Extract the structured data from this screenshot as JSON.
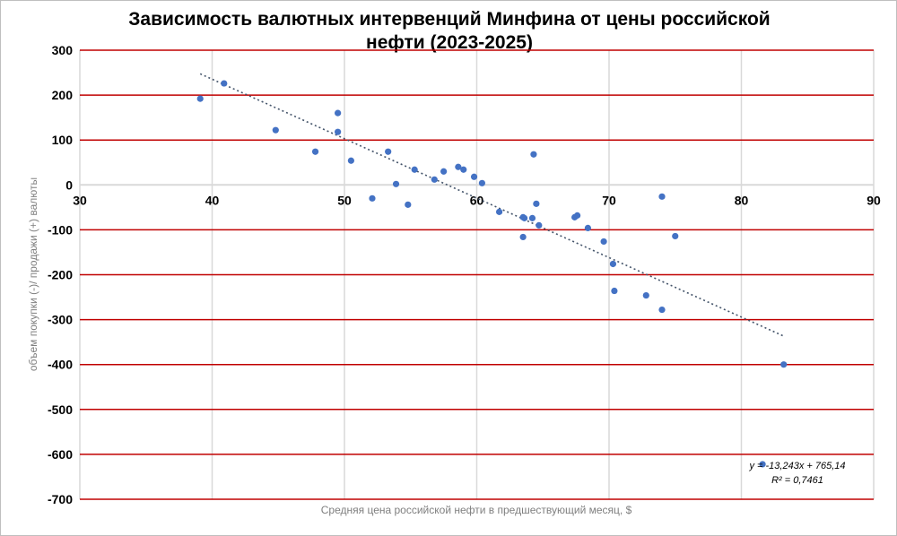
{
  "chart_data": {
    "type": "scatter",
    "title_line1": "Зависимость валютных интервенций Минфина от цены российской",
    "title_line2": "нефти (2023-2025)",
    "xlabel": "Средняя цена российской нефти в предшествующий месяц, $",
    "ylabel": "объем покупки (-)/ продажи (+) валюты",
    "xlim": [
      30,
      90
    ],
    "ylim": [
      -700,
      300
    ],
    "x_ticks": [
      "30",
      "40",
      "50",
      "60",
      "70",
      "80",
      "90"
    ],
    "y_ticks": [
      "300",
      "200",
      "100",
      "0",
      "-100",
      "-200",
      "-300",
      "-400",
      "-500",
      "-600",
      "-700"
    ],
    "grid": true,
    "colors": {
      "points": "#4472c4",
      "hgrid": "#c00000",
      "vgrid": "#d9d9d9",
      "trend": "#44546a"
    },
    "points": [
      [
        39.1,
        192
      ],
      [
        40.9,
        226
      ],
      [
        44.8,
        122
      ],
      [
        47.8,
        74
      ],
      [
        49.5,
        160
      ],
      [
        49.5,
        118
      ],
      [
        50.5,
        54
      ],
      [
        52.1,
        -30
      ],
      [
        53.3,
        74
      ],
      [
        53.9,
        2
      ],
      [
        54.8,
        -44
      ],
      [
        55.3,
        34
      ],
      [
        56.8,
        12
      ],
      [
        57.5,
        30
      ],
      [
        58.6,
        40
      ],
      [
        59.0,
        34
      ],
      [
        59.8,
        18
      ],
      [
        60.4,
        4
      ],
      [
        61.7,
        -60
      ],
      [
        63.5,
        -72
      ],
      [
        63.6,
        -74
      ],
      [
        63.5,
        -116
      ],
      [
        64.2,
        -74
      ],
      [
        64.3,
        68
      ],
      [
        64.5,
        -42
      ],
      [
        64.7,
        -90
      ],
      [
        67.4,
        -72
      ],
      [
        67.6,
        -68
      ],
      [
        68.4,
        -96
      ],
      [
        69.6,
        -126
      ],
      [
        70.3,
        -176
      ],
      [
        70.4,
        -236
      ],
      [
        72.8,
        -246
      ],
      [
        74.0,
        -278
      ],
      [
        74.0,
        -26
      ],
      [
        75.0,
        -114
      ],
      [
        81.6,
        -622
      ],
      [
        83.2,
        -400
      ]
    ],
    "trendline": {
      "slope": -13.243,
      "intercept": 765.14,
      "x_range": [
        39.1,
        83.2
      ],
      "equation": "y = -13,243x + 765,14",
      "r2": "R² = 0,7461"
    }
  }
}
